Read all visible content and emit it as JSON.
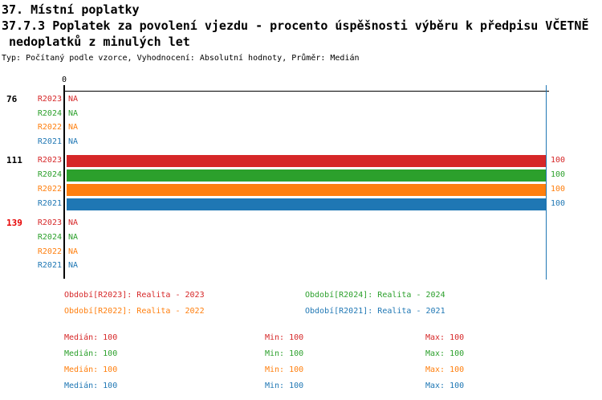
{
  "header": {
    "line1": "37. Místní poplatky",
    "line2": "37.7.3 Poplatek za povolení vjezdu - procento úspěšnosti výběru k předpisu VČETNĚ",
    "line3": " nedoplatků z minulých let",
    "meta": "Typ: Počítaný podle vzorce, Vyhodnocení: Absolutní hodnoty, Průměr: Medián"
  },
  "colors": {
    "axis": "#000000",
    "gridline_100": "#1f77b4",
    "category_default": "#000000",
    "category_alert": "#e60000"
  },
  "chart_data": {
    "type": "bar",
    "orientation": "horizontal",
    "title": "37.7.3 Poplatek za povolení vjezdu - procento úspěšnosti výběru k předpisu VČETNĚ nedoplatků z minulých let",
    "xlim": [
      0,
      100
    ],
    "x_ticks": [
      "0"
    ],
    "reference_line_x": 100,
    "na_text": "NA",
    "categories": [
      "76",
      "111",
      "139"
    ],
    "category_label_colors": [
      "#000000",
      "#000000",
      "#e60000"
    ],
    "series": [
      {
        "name": "R2023",
        "color": "#d62728",
        "values": [
          null,
          100,
          null
        ]
      },
      {
        "name": "R2024",
        "color": "#2ca02c",
        "values": [
          null,
          100,
          null
        ]
      },
      {
        "name": "R2022",
        "color": "#ff7f0e",
        "values": [
          null,
          100,
          null
        ]
      },
      {
        "name": "R2021",
        "color": "#1f77b4",
        "values": [
          null,
          100,
          null
        ]
      }
    ]
  },
  "legend": [
    {
      "text": "Období[R2023]: Realita - 2023",
      "color": "#d62728"
    },
    {
      "text": "Období[R2024]: Realita - 2024",
      "color": "#2ca02c"
    },
    {
      "text": "Období[R2022]: Realita - 2022",
      "color": "#ff7f0e"
    },
    {
      "text": "Období[R2021]: Realita - 2021",
      "color": "#1f77b4"
    }
  ],
  "stats_rows": [
    {
      "color": "#d62728",
      "median": "Medián: 100",
      "min": "Min: 100",
      "max": "Max: 100"
    },
    {
      "color": "#2ca02c",
      "median": "Medián: 100",
      "min": "Min: 100",
      "max": "Max: 100"
    },
    {
      "color": "#ff7f0e",
      "median": "Medián: 100",
      "min": "Min: 100",
      "max": "Max: 100"
    },
    {
      "color": "#1f77b4",
      "median": "Medián: 100",
      "min": "Min: 100",
      "max": "Max: 100"
    }
  ]
}
